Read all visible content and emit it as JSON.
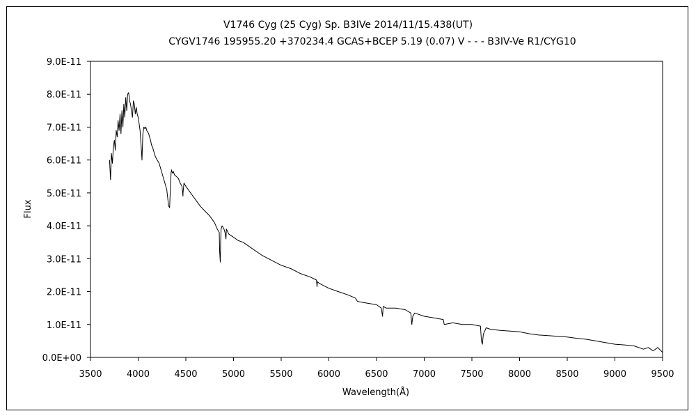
{
  "chart_data": {
    "type": "line",
    "title_line1": "V1746 Cyg (25 Cyg)   Sp. B3IVe   2014/11/15.438(UT)",
    "title_line2": "CYGV1746 195955.20 +370234.4 GCAS+BCEP 5.19 (0.07) V - - - B3IV-Ve R1/CYG10",
    "xlabel": "Wavelength(Å)",
    "ylabel": "Flux",
    "xlim": [
      3500,
      9500
    ],
    "ylim": [
      0,
      9e-11
    ],
    "xticks": [
      "3500",
      "4000",
      "4500",
      "5000",
      "5500",
      "6000",
      "6500",
      "7000",
      "7500",
      "8000",
      "8500",
      "9000",
      "9500"
    ],
    "yticks": [
      "0.0E+00",
      "1.0E-11",
      "2.0E-11",
      "3.0E-11",
      "4.0E-11",
      "5.0E-11",
      "6.0E-11",
      "7.0E-11",
      "8.0E-11",
      "9.0E-11"
    ],
    "grid": false,
    "legend": "none",
    "series": [
      {
        "color": "#000000",
        "x": [
          3700,
          3710,
          3720,
          3730,
          3740,
          3750,
          3760,
          3770,
          3780,
          3790,
          3800,
          3810,
          3820,
          3830,
          3840,
          3850,
          3860,
          3870,
          3880,
          3890,
          3900,
          3910,
          3920,
          3930,
          3940,
          3950,
          3960,
          3970,
          3980,
          3990,
          4000,
          4010,
          4020,
          4030,
          4040,
          4050,
          4060,
          4070,
          4080,
          4090,
          4100,
          4110,
          4120,
          4130,
          4140,
          4150,
          4160,
          4170,
          4180,
          4190,
          4200,
          4220,
          4240,
          4260,
          4280,
          4300,
          4320,
          4330,
          4340,
          4345,
          4350,
          4360,
          4370,
          4380,
          4400,
          4420,
          4440,
          4460,
          4470,
          4471,
          4480,
          4500,
          4550,
          4600,
          4650,
          4700,
          4750,
          4800,
          4830,
          4850,
          4855,
          4861,
          4865,
          4870,
          4880,
          4900,
          4910,
          4921,
          4925,
          4950,
          5000,
          5050,
          5100,
          5200,
          5300,
          5400,
          5500,
          5600,
          5700,
          5800,
          5870,
          5876,
          5880,
          5900,
          6000,
          6100,
          6200,
          6280,
          6300,
          6400,
          6500,
          6550,
          6563,
          6570,
          6600,
          6700,
          6800,
          6860,
          6870,
          6880,
          6900,
          7000,
          7100,
          7200,
          7210,
          7300,
          7400,
          7500,
          7590,
          7600,
          7610,
          7620,
          7650,
          7700,
          7800,
          7900,
          8000,
          8100,
          8200,
          8300,
          8400,
          8500,
          8600,
          8700,
          8800,
          8900,
          9000,
          9100,
          9200,
          9300,
          9350,
          9400,
          9450,
          9500
        ],
        "y": [
          6e-11,
          5.4e-11,
          6.2e-11,
          5.9e-11,
          6.4e-11,
          6.6e-11,
          6.3e-11,
          6.9e-11,
          6.7e-11,
          7.2e-11,
          6.9e-11,
          7.4e-11,
          6.8e-11,
          7.5e-11,
          7e-11,
          7.7e-11,
          7.3e-11,
          7.9e-11,
          7.5e-11,
          8e-11,
          8.05e-11,
          7.8e-11,
          7.7e-11,
          7.5e-11,
          7.3e-11,
          7.8e-11,
          7.7e-11,
          7.4e-11,
          7.6e-11,
          7.4e-11,
          7.3e-11,
          7.1e-11,
          6.9e-11,
          6.5e-11,
          6e-11,
          6.8e-11,
          7e-11,
          6.95e-11,
          7e-11,
          6.9e-11,
          6.85e-11,
          6.8e-11,
          6.7e-11,
          6.6e-11,
          6.45e-11,
          6.4e-11,
          6.3e-11,
          6.2e-11,
          6.1e-11,
          6.05e-11,
          6e-11,
          5.9e-11,
          5.7e-11,
          5.5e-11,
          5.3e-11,
          5.1e-11,
          4.6e-11,
          4.55e-11,
          5.3e-11,
          5.6e-11,
          5.7e-11,
          5.6e-11,
          5.65e-11,
          5.55e-11,
          5.5e-11,
          5.45e-11,
          5.3e-11,
          5.2e-11,
          4.9e-11,
          5e-11,
          5.3e-11,
          5.2e-11,
          5e-11,
          4.8e-11,
          4.6e-11,
          4.45e-11,
          4.3e-11,
          4.1e-11,
          3.9e-11,
          3.8e-11,
          3.2e-11,
          2.9e-11,
          3.5e-11,
          3.9e-11,
          4e-11,
          3.9e-11,
          3.8e-11,
          3.6e-11,
          3.9e-11,
          3.75e-11,
          3.65e-11,
          3.55e-11,
          3.5e-11,
          3.3e-11,
          3.1e-11,
          2.95e-11,
          2.8e-11,
          2.7e-11,
          2.55e-11,
          2.45e-11,
          2.35e-11,
          2.15e-11,
          2.3e-11,
          2.25e-11,
          2.1e-11,
          2e-11,
          1.9e-11,
          1.8e-11,
          1.7e-11,
          1.65e-11,
          1.6e-11,
          1.5e-11,
          1.25e-11,
          1.55e-11,
          1.5e-11,
          1.5e-11,
          1.45e-11,
          1.35e-11,
          1e-11,
          1.25e-11,
          1.35e-11,
          1.25e-11,
          1.2e-11,
          1.15e-11,
          1e-11,
          1.05e-11,
          1e-11,
          1e-11,
          9.5e-12,
          5e-12,
          4e-12,
          7e-12,
          9e-12,
          8.5e-12,
          8.2e-12,
          8e-12,
          7.8e-12,
          7.2e-12,
          6.8e-12,
          6.6e-12,
          6.4e-12,
          6.2e-12,
          5.8e-12,
          5.5e-12,
          5e-12,
          4.5e-12,
          4e-12,
          3.8e-12,
          3.5e-12,
          2.5e-12,
          3e-12,
          2e-12,
          3e-12,
          1.5e-12
        ]
      }
    ]
  }
}
